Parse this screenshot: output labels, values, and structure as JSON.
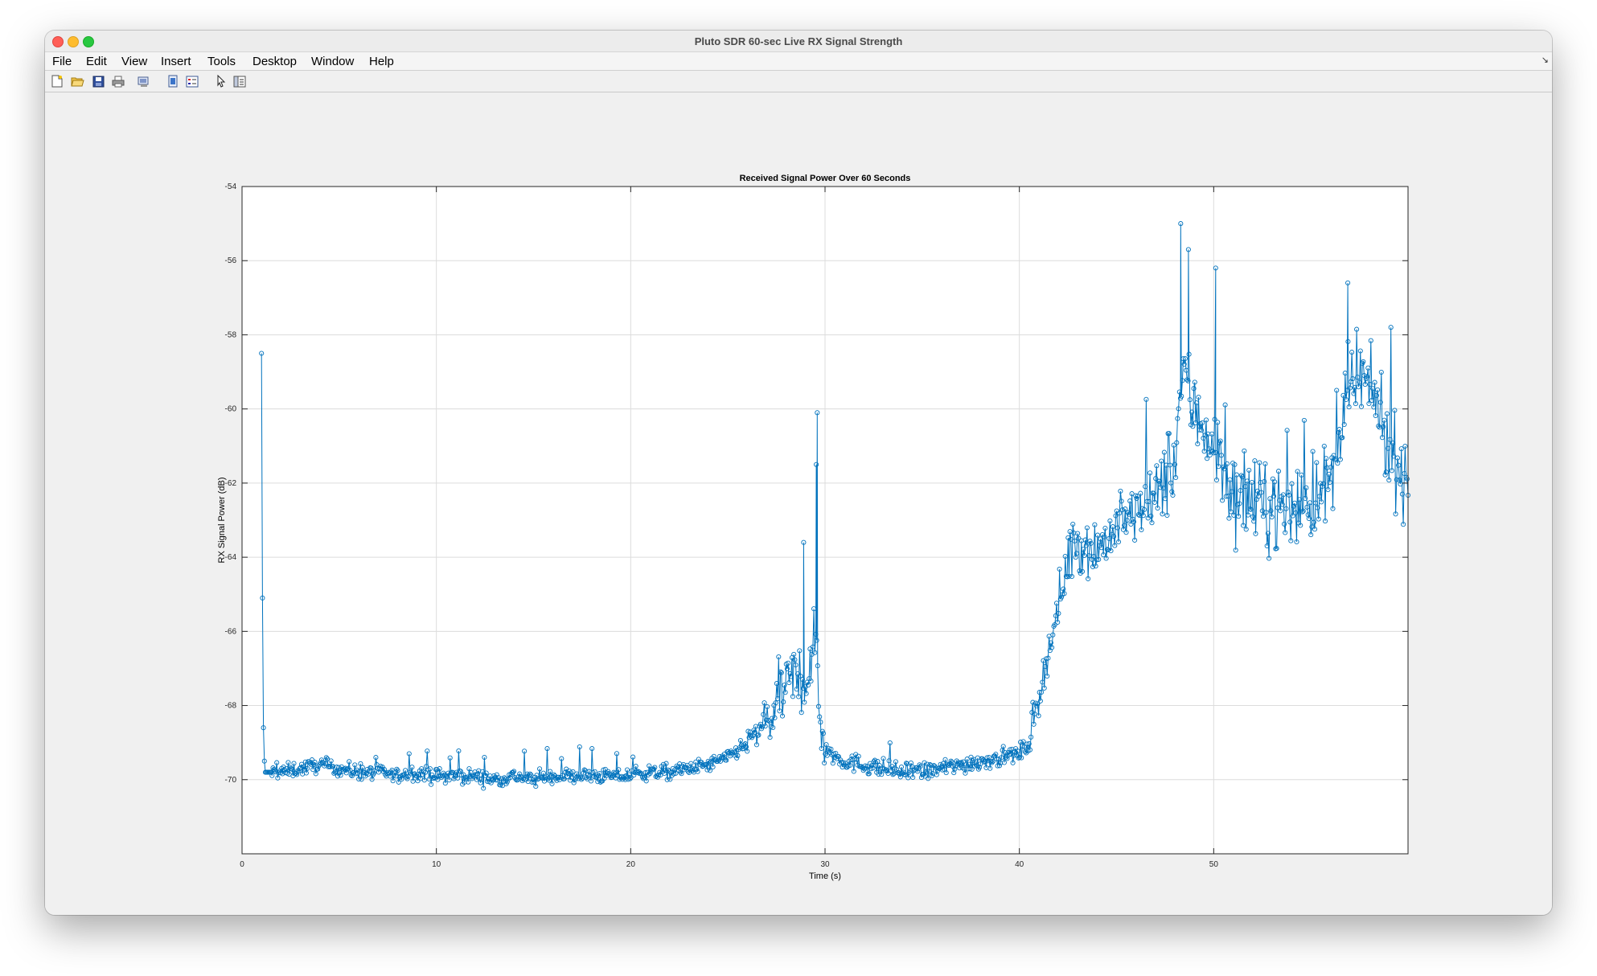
{
  "window": {
    "title": "Pluto SDR 60-sec Live RX Signal Strength"
  },
  "menu": {
    "items": [
      "File",
      "Edit",
      "View",
      "Insert",
      "Tools",
      "Desktop",
      "Window",
      "Help"
    ],
    "caret": "↘"
  },
  "toolbar": {
    "icons": [
      "new-figure-icon",
      "open-file-icon",
      "save-icon",
      "print-icon",
      "print-preview-icon",
      "link-plot-icon",
      "insert-legend-icon",
      "edit-plot-pointer-icon",
      "property-inspector-icon"
    ]
  },
  "colors": {
    "series": "#0072bd",
    "grid": "#dcdcdc",
    "axes": "#262626"
  },
  "chart_data": {
    "type": "line",
    "title": "Received Signal Power Over 60 Seconds",
    "xlabel": "Time (s)",
    "ylabel": "RX Signal Power (dB)",
    "xlim": [
      0,
      60
    ],
    "ylim": [
      -72,
      -54
    ],
    "xticks": [
      0,
      10,
      20,
      30,
      40,
      50
    ],
    "yticks": [
      -54,
      -56,
      -58,
      -60,
      -62,
      -64,
      -66,
      -68,
      -70
    ],
    "grid": true,
    "marker": "circle",
    "sample_count": 1200,
    "series": [
      {
        "name": "",
        "x": [
          1.0,
          1.05,
          1.1,
          1.15,
          1.2,
          1.5,
          2,
          3,
          4,
          5,
          6,
          7,
          8,
          9,
          10,
          11,
          12,
          13,
          14,
          15,
          16,
          17,
          18,
          19,
          20,
          21,
          22,
          23,
          24,
          25,
          26,
          27,
          28,
          28.5,
          29.0,
          29.3,
          29.55,
          29.7,
          30,
          31,
          32,
          33,
          34,
          35,
          36,
          37,
          38,
          39,
          40,
          40.5,
          41,
          41.5,
          42,
          42.5,
          43,
          44,
          45,
          46,
          47,
          47.5,
          48,
          48.4,
          48.8,
          49.2,
          49.6,
          50,
          51,
          52,
          53,
          54,
          55,
          56,
          57,
          57.5,
          58,
          58.5,
          59,
          60
        ],
        "y": [
          -58.5,
          -65.1,
          -68.6,
          -69.5,
          -69.8,
          -69.8,
          -69.8,
          -69.7,
          -69.6,
          -69.7,
          -69.8,
          -69.8,
          -69.9,
          -69.8,
          -69.9,
          -69.9,
          -69.9,
          -70.0,
          -69.9,
          -70.0,
          -69.9,
          -69.9,
          -69.9,
          -69.9,
          -69.9,
          -69.8,
          -69.8,
          -69.7,
          -69.6,
          -69.4,
          -69.0,
          -68.5,
          -67.5,
          -67.2,
          -67.3,
          -67.0,
          -66.0,
          -68.0,
          -69.2,
          -69.5,
          -69.6,
          -69.7,
          -69.8,
          -69.8,
          -69.7,
          -69.6,
          -69.5,
          -69.4,
          -69.3,
          -69.0,
          -67.8,
          -66.5,
          -65.4,
          -64.0,
          -63.6,
          -63.8,
          -63.2,
          -62.8,
          -62.5,
          -61.8,
          -61.5,
          -58.8,
          -59.8,
          -60.2,
          -60.5,
          -61.0,
          -62.3,
          -62.6,
          -62.6,
          -62.7,
          -62.4,
          -62.1,
          -59.5,
          -59.1,
          -59.6,
          -59.9,
          -61.0,
          -62.0
        ]
      }
    ]
  }
}
